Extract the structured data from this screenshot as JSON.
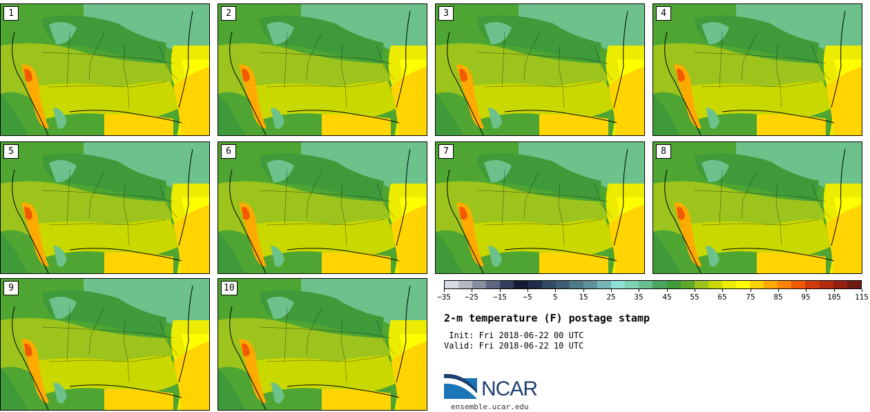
{
  "panels": [
    {
      "label": "1"
    },
    {
      "label": "2"
    },
    {
      "label": "3"
    },
    {
      "label": "4"
    },
    {
      "label": "5"
    },
    {
      "label": "6"
    },
    {
      "label": "7"
    },
    {
      "label": "8"
    },
    {
      "label": "9"
    },
    {
      "label": "10"
    }
  ],
  "colorbar": {
    "colors": [
      "#d8dce2",
      "#b3b8c1",
      "#878ea0",
      "#5e6681",
      "#343d5b",
      "#121a35",
      "#1f2c4a",
      "#304b63",
      "#3f5e75",
      "#4f7a88",
      "#5f929d",
      "#79b4b7",
      "#8edfd4",
      "#7fd2b3",
      "#68c08e",
      "#4ea55f",
      "#3f9a3a",
      "#5ea92c",
      "#9cc41c",
      "#c9d900",
      "#ecec00",
      "#ffff00",
      "#ffd400",
      "#ffaa00",
      "#ff8200",
      "#f25a00",
      "#cf3a0a",
      "#b02a10",
      "#922012",
      "#6e1a10"
    ],
    "tick_labels": [
      "−35",
      "−25",
      "−15",
      "−5",
      "5",
      "15",
      "25",
      "35",
      "45",
      "55",
      "65",
      "75",
      "85",
      "95",
      "105",
      "115"
    ]
  },
  "title": "2-m temperature (F) postage stamp",
  "init_text": " Init: Fri 2018-06-22 00 UTC",
  "valid_text": "Valid: Fri 2018-06-22 10 UTC",
  "logo_text": "NCAR",
  "url": "ensemble.ucar.edu"
}
